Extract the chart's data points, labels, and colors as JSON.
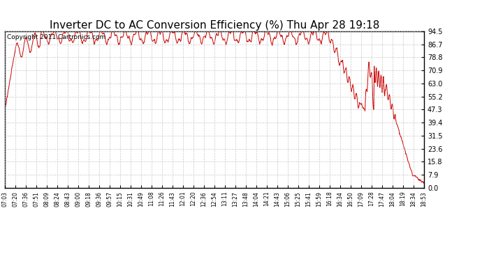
{
  "title": "Inverter DC to AC Conversion Efficiency (%) Thu Apr 28 19:18",
  "copyright": "Copyright 2011 Cartronics.com",
  "yticks": [
    0.0,
    7.9,
    15.8,
    23.6,
    31.5,
    39.4,
    47.3,
    55.2,
    63.0,
    70.9,
    78.8,
    86.7,
    94.5
  ],
  "ylim": [
    0.0,
    94.5
  ],
  "xtick_labels": [
    "07:03",
    "07:20",
    "07:36",
    "07:51",
    "08:09",
    "08:24",
    "08:43",
    "09:00",
    "09:18",
    "09:36",
    "09:57",
    "10:15",
    "10:31",
    "10:49",
    "11:08",
    "11:26",
    "11:43",
    "12:01",
    "12:20",
    "12:36",
    "12:54",
    "13:11",
    "13:27",
    "13:48",
    "14:04",
    "14:21",
    "14:43",
    "15:06",
    "15:25",
    "15:41",
    "15:59",
    "16:18",
    "16:34",
    "16:50",
    "17:09",
    "17:28",
    "17:47",
    "18:04",
    "18:19",
    "18:34",
    "18:53"
  ],
  "line_color": "#cc0000",
  "bg_color": "#ffffff",
  "grid_color": "#bbbbbb",
  "title_fontsize": 11,
  "copyright_fontsize": 6.5,
  "figwidth": 6.9,
  "figheight": 3.75,
  "dpi": 100
}
